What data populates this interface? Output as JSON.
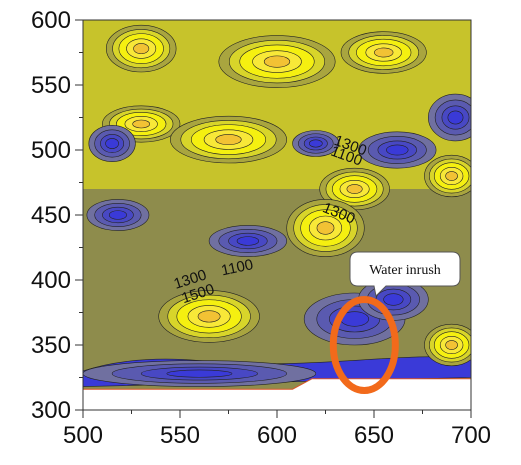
{
  "chart_data": {
    "type": "contour",
    "title": "",
    "xlabel": "",
    "ylabel": "",
    "xlim": [
      500,
      700
    ],
    "ylim": [
      300,
      600
    ],
    "x_ticks": [
      "500",
      "550",
      "600",
      "650",
      "700"
    ],
    "y_ticks": [
      "300",
      "350",
      "400",
      "450",
      "500",
      "550",
      "600"
    ],
    "colors": {
      "high": "#f5f010",
      "mid": "#8e8c4c",
      "low": "#5a5ab0",
      "lowest": "#3a3ad8",
      "annotation_ring": "#f26a1b",
      "contour_line": "#222222"
    },
    "contour_labels": [
      {
        "text": "1300",
        "x": 637,
        "y": 500,
        "angle": 20
      },
      {
        "text": "1100",
        "x": 635,
        "y": 492,
        "angle": 20
      },
      {
        "text": "1300",
        "x": 631,
        "y": 448,
        "angle": 22
      },
      {
        "text": "1100",
        "x": 580,
        "y": 406,
        "angle": -12
      },
      {
        "text": "1300",
        "x": 556,
        "y": 397,
        "angle": -18
      },
      {
        "text": "1500",
        "x": 560,
        "y": 386,
        "angle": -18
      }
    ],
    "highs": [
      {
        "x": 530,
        "y": 578,
        "rx": 18,
        "ry": 18
      },
      {
        "x": 600,
        "y": 568,
        "rx": 30,
        "ry": 20
      },
      {
        "x": 655,
        "y": 575,
        "rx": 22,
        "ry": 16
      },
      {
        "x": 530,
        "y": 520,
        "rx": 20,
        "ry": 14
      },
      {
        "x": 575,
        "y": 508,
        "rx": 30,
        "ry": 18
      },
      {
        "x": 640,
        "y": 470,
        "rx": 18,
        "ry": 16
      },
      {
        "x": 625,
        "y": 440,
        "rx": 20,
        "ry": 22
      },
      {
        "x": 690,
        "y": 480,
        "rx": 14,
        "ry": 16
      },
      {
        "x": 565,
        "y": 372,
        "rx": 26,
        "ry": 20
      },
      {
        "x": 690,
        "y": 350,
        "rx": 14,
        "ry": 16
      }
    ],
    "lows": [
      {
        "x": 515,
        "y": 505,
        "rx": 12,
        "ry": 14
      },
      {
        "x": 620,
        "y": 505,
        "rx": 12,
        "ry": 10
      },
      {
        "x": 662,
        "y": 500,
        "rx": 20,
        "ry": 14
      },
      {
        "x": 692,
        "y": 525,
        "rx": 14,
        "ry": 18
      },
      {
        "x": 518,
        "y": 450,
        "rx": 16,
        "ry": 12
      },
      {
        "x": 585,
        "y": 430,
        "rx": 20,
        "ry": 12
      },
      {
        "x": 640,
        "y": 370,
        "rx": 26,
        "ry": 20
      },
      {
        "x": 660,
        "y": 385,
        "rx": 18,
        "ry": 16
      },
      {
        "x": 560,
        "y": 328,
        "rx": 60,
        "ry": 10
      }
    ],
    "callout": {
      "text": "Water inrush",
      "circle_center": [
        645,
        350
      ],
      "circle_radius": [
        16,
        35
      ]
    }
  }
}
